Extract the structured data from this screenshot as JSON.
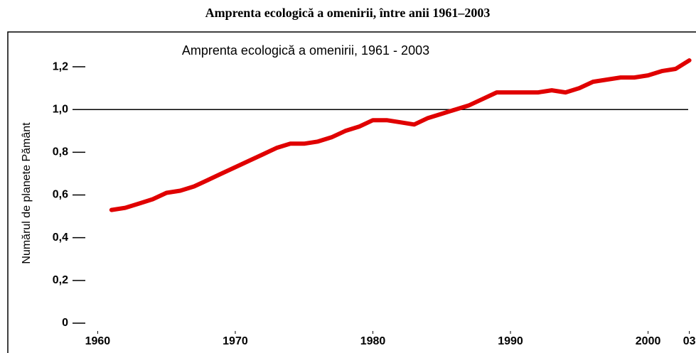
{
  "heading": "Amprenta ecologică a omenirii, între anii 1961–2003",
  "chart_data": {
    "type": "line",
    "title": "Amprenta ecologică a omenirii, 1961 - 2003",
    "y_label": "Numărul de planete Pământ",
    "x": [
      1961,
      1962,
      1963,
      1964,
      1965,
      1966,
      1967,
      1968,
      1969,
      1970,
      1971,
      1972,
      1973,
      1974,
      1975,
      1976,
      1977,
      1978,
      1979,
      1980,
      1981,
      1982,
      1983,
      1984,
      1985,
      1986,
      1987,
      1988,
      1989,
      1990,
      1991,
      1992,
      1993,
      1994,
      1995,
      1996,
      1997,
      1998,
      1999,
      2000,
      2001,
      2002,
      2003
    ],
    "values": [
      0.53,
      0.54,
      0.56,
      0.58,
      0.61,
      0.62,
      0.64,
      0.67,
      0.7,
      0.73,
      0.76,
      0.79,
      0.82,
      0.84,
      0.84,
      0.85,
      0.87,
      0.9,
      0.92,
      0.95,
      0.95,
      0.94,
      0.93,
      0.96,
      0.98,
      1.0,
      1.02,
      1.05,
      1.08,
      1.08,
      1.08,
      1.08,
      1.09,
      1.08,
      1.1,
      1.13,
      1.14,
      1.15,
      1.15,
      1.16,
      1.18,
      1.19,
      1.23
    ],
    "color": "#e00000",
    "reference_line": 1.0,
    "xlim": [
      1956,
      2004
    ],
    "ylim": [
      0,
      1.25
    ],
    "xticks": [
      1960,
      1970,
      1980,
      1990,
      2000,
      {
        "value": 2003,
        "label": "03"
      }
    ],
    "yticks": [
      0,
      {
        "value": 0.2,
        "label": "0,2"
      },
      {
        "value": 0.4,
        "label": "0,4"
      },
      {
        "value": 0.6,
        "label": "0,6"
      },
      {
        "value": 0.8,
        "label": "0,8"
      },
      {
        "value": 1.0,
        "label": "1,0"
      },
      {
        "value": 1.2,
        "label": "1,2"
      }
    ]
  }
}
